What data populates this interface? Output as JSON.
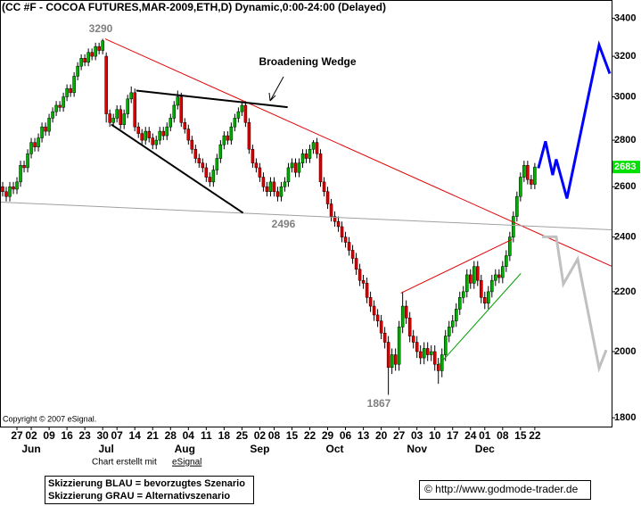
{
  "chart_data": {
    "type": "candlestick",
    "title": "(CC #F - COCOA FUTURES,MAR-2009,ETH,D) Dynamic,0:00-24:00 (Delayed)",
    "copyright": "Copyright © 2007 eSignal.",
    "log_scale": true,
    "ylim": [
      1775,
      3500
    ],
    "yticks": [
      1800,
      2000,
      2200,
      2400,
      2600,
      2800,
      3000,
      3200,
      3400
    ],
    "xlim": [
      -0.5,
      170.5
    ],
    "up_color": "#00b000",
    "down_color": "#e00000",
    "last_price": 2683,
    "last_price_color": "#00e000",
    "categories": [
      null,
      null,
      null,
      null,
      "27",
      null,
      null,
      null,
      "02",
      null,
      null,
      null,
      null,
      "09",
      null,
      null,
      null,
      null,
      "16",
      null,
      null,
      null,
      null,
      "23",
      null,
      null,
      null,
      null,
      "30",
      null,
      null,
      null,
      "07",
      null,
      null,
      null,
      null,
      "14",
      null,
      null,
      null,
      null,
      "21",
      null,
      null,
      null,
      null,
      "28",
      null,
      null,
      null,
      null,
      "04",
      null,
      null,
      null,
      null,
      "11",
      null,
      null,
      null,
      null,
      "18",
      null,
      null,
      null,
      null,
      "25",
      null,
      null,
      null,
      null,
      "02",
      null,
      null,
      null,
      "08",
      null,
      null,
      null,
      null,
      "15",
      null,
      null,
      null,
      null,
      "22",
      null,
      null,
      null,
      null,
      "29",
      null,
      null,
      null,
      null,
      "06",
      null,
      null,
      null,
      null,
      "13",
      null,
      null,
      null,
      null,
      "20",
      null,
      null,
      null,
      null,
      "27",
      null,
      null,
      null,
      null,
      "03",
      null,
      null,
      null,
      null,
      "10",
      null,
      null,
      null,
      null,
      "17",
      null,
      null,
      null,
      null,
      "24",
      null,
      null,
      null,
      "01",
      null,
      null,
      null,
      null,
      "08",
      null,
      null,
      null,
      null,
      "15",
      null,
      null,
      null,
      "22"
    ],
    "months": [
      null,
      null,
      null,
      null,
      null,
      null,
      null,
      null,
      "Jun",
      null,
      null,
      null,
      null,
      null,
      null,
      null,
      null,
      null,
      null,
      null,
      null,
      null,
      null,
      null,
      null,
      null,
      null,
      null,
      null,
      "Jul",
      null,
      null,
      null,
      null,
      null,
      null,
      null,
      null,
      null,
      null,
      null,
      null,
      null,
      null,
      null,
      null,
      null,
      null,
      null,
      null,
      null,
      "Aug",
      null,
      null,
      null,
      null,
      null,
      null,
      null,
      null,
      null,
      null,
      null,
      null,
      null,
      null,
      null,
      null,
      null,
      null,
      null,
      null,
      "Sep",
      null,
      null,
      null,
      null,
      null,
      null,
      null,
      null,
      null,
      null,
      null,
      null,
      null,
      null,
      null,
      null,
      null,
      null,
      null,
      null,
      "Oct",
      null,
      null,
      null,
      null,
      null,
      null,
      null,
      null,
      null,
      null,
      null,
      null,
      null,
      null,
      null,
      null,
      null,
      null,
      null,
      null,
      null,
      null,
      "Nov",
      null,
      null,
      null,
      null,
      null,
      null,
      null,
      null,
      null,
      null,
      null,
      null,
      null,
      null,
      null,
      null,
      null,
      null,
      "Dec",
      null,
      null,
      null,
      null,
      null,
      null,
      null,
      null,
      null,
      null,
      null,
      null,
      null,
      null
    ],
    "open": [
      2600,
      2580,
      2560,
      2600,
      2590,
      2620,
      2690,
      2680,
      2740,
      2790,
      2770,
      2810,
      2860,
      2840,
      2900,
      2930,
      2960,
      2950,
      3000,
      3040,
      3020,
      3100,
      3150,
      3190,
      3170,
      3220,
      3200,
      3250,
      3230,
      3200,
      2920,
      2880,
      2900,
      2940,
      2870,
      2920,
      2990,
      3020,
      2860,
      2830,
      2800,
      2840,
      2810,
      2780,
      2800,
      2840,
      2820,
      2860,
      2900,
      2960,
      3000,
      2880,
      2850,
      2800,
      2760,
      2720,
      2700,
      2680,
      2640,
      2620,
      2670,
      2720,
      2780,
      2820,
      2800,
      2860,
      2900,
      2930,
      2960,
      2880,
      2760,
      2700,
      2680,
      2640,
      2600,
      2580,
      2620,
      2580,
      2560,
      2600,
      2620,
      2680,
      2700,
      2660,
      2700,
      2740,
      2720,
      2760,
      2790,
      2740,
      2620,
      2580,
      2530,
      2480,
      2460,
      2440,
      2400,
      2380,
      2350,
      2320,
      2280,
      2240,
      2230,
      2180,
      2150,
      2120,
      2100,
      2060,
      2030,
      1950,
      1990,
      1960,
      2080,
      2150,
      2110,
      2050,
      2030,
      2000,
      1980,
      2010,
      1990,
      2000,
      1960,
      1940,
      1990,
      2050,
      2080,
      2100,
      2140,
      2180,
      2200,
      2260,
      2230,
      2290,
      2240,
      2180,
      2160,
      2200,
      2240,
      2260,
      2250,
      2290,
      2330,
      2400,
      2480,
      2560,
      2640,
      2690,
      2630,
      2610
    ],
    "high": [
      2620,
      2600,
      2620,
      2620,
      2640,
      2710,
      2710,
      2760,
      2810,
      2810,
      2830,
      2880,
      2880,
      2920,
      2950,
      2980,
      2980,
      3020,
      3060,
      3060,
      3120,
      3170,
      3210,
      3210,
      3240,
      3240,
      3270,
      3270,
      3290,
      3220,
      2940,
      2920,
      2960,
      2960,
      2940,
      3010,
      3050,
      3040,
      2880,
      2850,
      2860,
      2860,
      2830,
      2820,
      2860,
      2860,
      2880,
      2920,
      2980,
      3030,
      3020,
      2900,
      2870,
      2820,
      2780,
      2740,
      2720,
      2700,
      2660,
      2690,
      2740,
      2800,
      2840,
      2840,
      2880,
      2920,
      2950,
      2980,
      2980,
      2900,
      2780,
      2720,
      2700,
      2660,
      2620,
      2640,
      2640,
      2600,
      2620,
      2640,
      2700,
      2720,
      2720,
      2720,
      2760,
      2760,
      2780,
      2800,
      2810,
      2760,
      2640,
      2600,
      2550,
      2500,
      2480,
      2460,
      2420,
      2400,
      2370,
      2340,
      2300,
      2260,
      2250,
      2200,
      2170,
      2140,
      2120,
      2080,
      2050,
      2010,
      2010,
      2100,
      2200,
      2170,
      2130,
      2070,
      2050,
      2020,
      2030,
      2030,
      2020,
      2020,
      1980,
      2010,
      2070,
      2100,
      2120,
      2160,
      2200,
      2220,
      2280,
      2280,
      2310,
      2310,
      2260,
      2200,
      2220,
      2260,
      2280,
      2280,
      2310,
      2350,
      2420,
      2500,
      2580,
      2660,
      2710,
      2710,
      2650,
      2700
    ],
    "low": [
      2560,
      2540,
      2540,
      2570,
      2570,
      2600,
      2660,
      2660,
      2720,
      2750,
      2750,
      2790,
      2820,
      2820,
      2880,
      2910,
      2930,
      2930,
      2980,
      3000,
      3000,
      3080,
      3130,
      3150,
      3150,
      3180,
      3180,
      3210,
      3210,
      2880,
      2860,
      2860,
      2880,
      2850,
      2850,
      2900,
      2970,
      2840,
      2810,
      2780,
      2780,
      2790,
      2760,
      2760,
      2780,
      2800,
      2800,
      2840,
      2880,
      2940,
      2860,
      2830,
      2780,
      2740,
      2700,
      2680,
      2660,
      2620,
      2600,
      2600,
      2650,
      2700,
      2760,
      2780,
      2780,
      2840,
      2880,
      2910,
      2860,
      2740,
      2680,
      2660,
      2620,
      2580,
      2560,
      2560,
      2560,
      2540,
      2540,
      2580,
      2600,
      2660,
      2640,
      2640,
      2680,
      2700,
      2700,
      2740,
      2720,
      2600,
      2560,
      2510,
      2460,
      2440,
      2420,
      2380,
      2360,
      2330,
      2300,
      2260,
      2220,
      2210,
      2160,
      2130,
      2100,
      2080,
      2040,
      2010,
      1867,
      1930,
      1940,
      1940,
      2060,
      2090,
      2030,
      2010,
      1980,
      1960,
      1960,
      1970,
      1970,
      1940,
      1900,
      1920,
      1970,
      2030,
      2060,
      2080,
      2120,
      2160,
      2180,
      2210,
      2210,
      2220,
      2160,
      2140,
      2140,
      2180,
      2220,
      2230,
      2230,
      2270,
      2310,
      2380,
      2460,
      2540,
      2620,
      2610,
      2590,
      2590
    ],
    "close": [
      2580,
      2560,
      2600,
      2590,
      2620,
      2690,
      2680,
      2740,
      2790,
      2770,
      2810,
      2860,
      2840,
      2900,
      2930,
      2960,
      2950,
      3000,
      3040,
      3020,
      3100,
      3150,
      3190,
      3170,
      3220,
      3200,
      3250,
      3230,
      3280,
      2920,
      2880,
      2900,
      2940,
      2870,
      2920,
      2990,
      3020,
      2860,
      2830,
      2800,
      2840,
      2810,
      2780,
      2800,
      2840,
      2820,
      2860,
      2900,
      2960,
      3000,
      2880,
      2850,
      2800,
      2760,
      2720,
      2700,
      2680,
      2640,
      2620,
      2670,
      2720,
      2780,
      2820,
      2800,
      2860,
      2900,
      2930,
      2960,
      2880,
      2760,
      2700,
      2680,
      2640,
      2600,
      2580,
      2620,
      2580,
      2560,
      2600,
      2620,
      2680,
      2700,
      2660,
      2700,
      2740,
      2720,
      2760,
      2790,
      2740,
      2620,
      2580,
      2530,
      2480,
      2460,
      2440,
      2400,
      2380,
      2350,
      2320,
      2280,
      2240,
      2230,
      2180,
      2150,
      2120,
      2100,
      2060,
      2030,
      1950,
      1990,
      1960,
      2080,
      2150,
      2110,
      2050,
      2030,
      2000,
      1980,
      2010,
      1990,
      2000,
      1960,
      1940,
      1990,
      2050,
      2080,
      2100,
      2140,
      2180,
      2200,
      2260,
      2230,
      2290,
      2240,
      2180,
      2160,
      2200,
      2240,
      2260,
      2250,
      2290,
      2330,
      2400,
      2480,
      2560,
      2640,
      2690,
      2630,
      2610,
      2683
    ],
    "trendlines": [
      {
        "color": "#e00000",
        "width": 1,
        "x": [
          28.7,
          170.5
        ],
        "values": [
          3290,
          2291
        ]
      },
      {
        "color": "#a0a0a0",
        "width": 1,
        "x": [
          -0.5,
          170.5
        ],
        "values": [
          2537,
          2428
        ]
      },
      {
        "color": "#000000",
        "width": 2,
        "x": [
          37.4,
          79.8
        ],
        "values": [
          3030,
          2951
        ]
      },
      {
        "color": "#000000",
        "width": 2,
        "x": [
          30.4,
          67.3
        ],
        "values": [
          2871,
          2494
        ]
      },
      {
        "color": "#e00000",
        "width": 1,
        "x": [
          111.5,
          142.6
        ],
        "values": [
          2195,
          2391
        ]
      },
      {
        "color": "#00a000",
        "width": 1,
        "x": [
          122.2,
          145.1
        ],
        "values": [
          1959,
          2265
        ]
      }
    ],
    "projections": [
      {
        "color": "#0000ff",
        "width": 3,
        "x": [
          150,
          152,
          154,
          155,
          158,
          167,
          170
        ],
        "values": [
          2678,
          2795,
          2649,
          2716,
          2552,
          3258,
          3113
        ]
      },
      {
        "color": "#c0c0c0",
        "width": 3,
        "x": [
          151,
          155,
          157,
          161,
          167,
          169
        ],
        "values": [
          2401,
          2401,
          2227,
          2317,
          1948,
          2005
        ]
      }
    ],
    "annotations": [
      3290,
      "Broadening Wedge",
      2496,
      1867
    ],
    "credit": {
      "prefix": "Chart erstellt mit",
      "link": "eSignal"
    },
    "legend": [
      "Skizzierung BLAU = bevorzugtes Szenario",
      "Skizzierung GRAU = Alternativszenario"
    ],
    "source": "© http://www.godmode-trader.de"
  }
}
